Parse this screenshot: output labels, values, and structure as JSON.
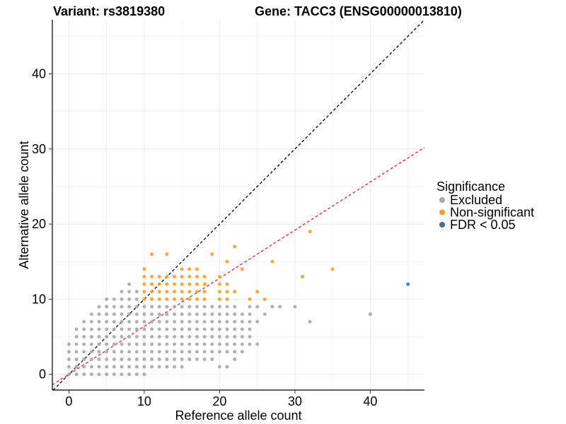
{
  "chart_data": {
    "type": "scatter",
    "title_variant": "Variant: rs3819380",
    "title_gene": "Gene: TACC3 (ENSG00000013810)",
    "xlabel": "Reference allele count",
    "ylabel": "Alternative allele count",
    "xlim": [
      -2.2,
      47.2
    ],
    "ylim": [
      -2.1,
      47.2
    ],
    "x_ticks": [
      0,
      10,
      20,
      30,
      40
    ],
    "y_ticks": [
      0,
      10,
      20,
      30,
      40
    ],
    "grid": true,
    "legend": {
      "title": "Significance",
      "placement": "right",
      "entries": [
        {
          "label": "Excluded",
          "color": "#a9a9a9"
        },
        {
          "label": "Non-significant",
          "color": "#f5a020"
        },
        {
          "label": "FDR < 0.05",
          "color": "#3f6fa0"
        }
      ]
    },
    "reference_lines": [
      {
        "name": "y = x",
        "slope": 1.0,
        "intercept": 0,
        "color": "#000000",
        "dash": "dashed"
      },
      {
        "name": "fit",
        "slope": 0.64,
        "intercept": 0,
        "color": "#e8262a",
        "dash": "dashed"
      }
    ],
    "series": [
      {
        "name": "Excluded",
        "color": "#a9a9a9",
        "points": [
          [
            0,
            0
          ],
          [
            0,
            1
          ],
          [
            0,
            2
          ],
          [
            0,
            3
          ],
          [
            0,
            4
          ],
          [
            1,
            0
          ],
          [
            1,
            1
          ],
          [
            1,
            2
          ],
          [
            1,
            3
          ],
          [
            1,
            4
          ],
          [
            1,
            5
          ],
          [
            1,
            6
          ],
          [
            2,
            0
          ],
          [
            2,
            1
          ],
          [
            2,
            2
          ],
          [
            2,
            3
          ],
          [
            2,
            4
          ],
          [
            2,
            5
          ],
          [
            2,
            6
          ],
          [
            2,
            7
          ],
          [
            3,
            0
          ],
          [
            3,
            1
          ],
          [
            3,
            2
          ],
          [
            3,
            3
          ],
          [
            3,
            4
          ],
          [
            3,
            5
          ],
          [
            3,
            6
          ],
          [
            3,
            7
          ],
          [
            3,
            8
          ],
          [
            4,
            0
          ],
          [
            4,
            1
          ],
          [
            4,
            2
          ],
          [
            4,
            3
          ],
          [
            4,
            4
          ],
          [
            4,
            5
          ],
          [
            4,
            6
          ],
          [
            4,
            7
          ],
          [
            4,
            8
          ],
          [
            4,
            9
          ],
          [
            5,
            0
          ],
          [
            5,
            1
          ],
          [
            5,
            2
          ],
          [
            5,
            3
          ],
          [
            5,
            4
          ],
          [
            5,
            5
          ],
          [
            5,
            6
          ],
          [
            5,
            7
          ],
          [
            5,
            8
          ],
          [
            5,
            9
          ],
          [
            5,
            10
          ],
          [
            6,
            0
          ],
          [
            6,
            1
          ],
          [
            6,
            2
          ],
          [
            6,
            3
          ],
          [
            6,
            4
          ],
          [
            6,
            5
          ],
          [
            6,
            6
          ],
          [
            6,
            7
          ],
          [
            6,
            8
          ],
          [
            6,
            9
          ],
          [
            6,
            10
          ],
          [
            7,
            0
          ],
          [
            7,
            1
          ],
          [
            7,
            2
          ],
          [
            7,
            3
          ],
          [
            7,
            4
          ],
          [
            7,
            5
          ],
          [
            7,
            6
          ],
          [
            7,
            7
          ],
          [
            7,
            8
          ],
          [
            7,
            9
          ],
          [
            7,
            10
          ],
          [
            7,
            11
          ],
          [
            8,
            0
          ],
          [
            8,
            1
          ],
          [
            8,
            2
          ],
          [
            8,
            3
          ],
          [
            8,
            4
          ],
          [
            8,
            5
          ],
          [
            8,
            6
          ],
          [
            8,
            7
          ],
          [
            8,
            8
          ],
          [
            8,
            9
          ],
          [
            8,
            10
          ],
          [
            8,
            11
          ],
          [
            8,
            12
          ],
          [
            9,
            0
          ],
          [
            9,
            1
          ],
          [
            9,
            2
          ],
          [
            9,
            3
          ],
          [
            9,
            4
          ],
          [
            9,
            5
          ],
          [
            9,
            6
          ],
          [
            9,
            7
          ],
          [
            9,
            8
          ],
          [
            9,
            9
          ],
          [
            9,
            10
          ],
          [
            9,
            11
          ],
          [
            10,
            0
          ],
          [
            10,
            1
          ],
          [
            10,
            2
          ],
          [
            10,
            3
          ],
          [
            10,
            4
          ],
          [
            10,
            5
          ],
          [
            10,
            6
          ],
          [
            10,
            7
          ],
          [
            10,
            8
          ],
          [
            10,
            9
          ],
          [
            11,
            1
          ],
          [
            11,
            2
          ],
          [
            11,
            3
          ],
          [
            11,
            4
          ],
          [
            11,
            5
          ],
          [
            11,
            6
          ],
          [
            11,
            7
          ],
          [
            11,
            8
          ],
          [
            11,
            9
          ],
          [
            12,
            1
          ],
          [
            12,
            2
          ],
          [
            12,
            3
          ],
          [
            12,
            4
          ],
          [
            12,
            5
          ],
          [
            12,
            6
          ],
          [
            12,
            7
          ],
          [
            12,
            8
          ],
          [
            12,
            9
          ],
          [
            13,
            1
          ],
          [
            13,
            2
          ],
          [
            13,
            3
          ],
          [
            13,
            4
          ],
          [
            13,
            5
          ],
          [
            13,
            6
          ],
          [
            13,
            7
          ],
          [
            13,
            8
          ],
          [
            13,
            9
          ],
          [
            14,
            1
          ],
          [
            14,
            2
          ],
          [
            14,
            3
          ],
          [
            14,
            4
          ],
          [
            14,
            5
          ],
          [
            14,
            6
          ],
          [
            14,
            7
          ],
          [
            14,
            8
          ],
          [
            14,
            9
          ],
          [
            15,
            1
          ],
          [
            15,
            2
          ],
          [
            15,
            3
          ],
          [
            15,
            4
          ],
          [
            15,
            5
          ],
          [
            15,
            6
          ],
          [
            15,
            7
          ],
          [
            15,
            8
          ],
          [
            15,
            9
          ],
          [
            16,
            2
          ],
          [
            16,
            3
          ],
          [
            16,
            4
          ],
          [
            16,
            5
          ],
          [
            16,
            6
          ],
          [
            16,
            7
          ],
          [
            16,
            8
          ],
          [
            16,
            9
          ],
          [
            17,
            2
          ],
          [
            17,
            3
          ],
          [
            17,
            4
          ],
          [
            17,
            5
          ],
          [
            17,
            6
          ],
          [
            17,
            7
          ],
          [
            17,
            8
          ],
          [
            17,
            9
          ],
          [
            18,
            2
          ],
          [
            18,
            3
          ],
          [
            18,
            4
          ],
          [
            18,
            5
          ],
          [
            18,
            6
          ],
          [
            18,
            7
          ],
          [
            18,
            8
          ],
          [
            18,
            9
          ],
          [
            19,
            2
          ],
          [
            19,
            3
          ],
          [
            19,
            4
          ],
          [
            19,
            5
          ],
          [
            19,
            6
          ],
          [
            19,
            7
          ],
          [
            19,
            8
          ],
          [
            19,
            9
          ],
          [
            20,
            1
          ],
          [
            20,
            3
          ],
          [
            20,
            4
          ],
          [
            20,
            5
          ],
          [
            20,
            6
          ],
          [
            20,
            7
          ],
          [
            20,
            8
          ],
          [
            20,
            9
          ],
          [
            21,
            1
          ],
          [
            21,
            3
          ],
          [
            21,
            4
          ],
          [
            21,
            5
          ],
          [
            21,
            6
          ],
          [
            21,
            7
          ],
          [
            21,
            8
          ],
          [
            21,
            9
          ],
          [
            22,
            2
          ],
          [
            22,
            3
          ],
          [
            22,
            4
          ],
          [
            22,
            5
          ],
          [
            22,
            6
          ],
          [
            22,
            7
          ],
          [
            22,
            8
          ],
          [
            22,
            9
          ],
          [
            23,
            3
          ],
          [
            23,
            4
          ],
          [
            23,
            5
          ],
          [
            23,
            6
          ],
          [
            23,
            7
          ],
          [
            23,
            8
          ],
          [
            24,
            4
          ],
          [
            24,
            5
          ],
          [
            24,
            6
          ],
          [
            24,
            7
          ],
          [
            24,
            8
          ],
          [
            24,
            9
          ],
          [
            25,
            4
          ],
          [
            25,
            7
          ],
          [
            25,
            9
          ],
          [
            26,
            8
          ],
          [
            27,
            9
          ],
          [
            28,
            9
          ],
          [
            30,
            9
          ],
          [
            32,
            7
          ],
          [
            40,
            8
          ]
        ]
      },
      {
        "name": "Non-significant",
        "color": "#f5a020",
        "points": [
          [
            10,
            10
          ],
          [
            10,
            11
          ],
          [
            10,
            12
          ],
          [
            10,
            13
          ],
          [
            10,
            14
          ],
          [
            11,
            10
          ],
          [
            11,
            11
          ],
          [
            11,
            12
          ],
          [
            11,
            13
          ],
          [
            11,
            16
          ],
          [
            12,
            10
          ],
          [
            12,
            11
          ],
          [
            12,
            12
          ],
          [
            12,
            13
          ],
          [
            13,
            10
          ],
          [
            13,
            11
          ],
          [
            13,
            12
          ],
          [
            13,
            13
          ],
          [
            13,
            16
          ],
          [
            14,
            10
          ],
          [
            14,
            11
          ],
          [
            14,
            12
          ],
          [
            14,
            13
          ],
          [
            15,
            10
          ],
          [
            15,
            11
          ],
          [
            15,
            12
          ],
          [
            15,
            13
          ],
          [
            15,
            14
          ],
          [
            16,
            10
          ],
          [
            16,
            11
          ],
          [
            16,
            12
          ],
          [
            16,
            13
          ],
          [
            16,
            14
          ],
          [
            17,
            10
          ],
          [
            17,
            11
          ],
          [
            17,
            12
          ],
          [
            17,
            13
          ],
          [
            17,
            14
          ],
          [
            18,
            10
          ],
          [
            18,
            11
          ],
          [
            18,
            12
          ],
          [
            18,
            13
          ],
          [
            19,
            16
          ],
          [
            20,
            10
          ],
          [
            20,
            11
          ],
          [
            20,
            12
          ],
          [
            20,
            13
          ],
          [
            21,
            10
          ],
          [
            21,
            11
          ],
          [
            21,
            12
          ],
          [
            21,
            15
          ],
          [
            22,
            11
          ],
          [
            22,
            17
          ],
          [
            23,
            14
          ],
          [
            24,
            10
          ],
          [
            25,
            11
          ],
          [
            26,
            10
          ],
          [
            27,
            15
          ],
          [
            31,
            13
          ],
          [
            32,
            19
          ],
          [
            35,
            14
          ]
        ]
      },
      {
        "name": "FDR < 0.05",
        "color": "#3f6fa0",
        "points": [
          [
            45,
            12
          ]
        ]
      }
    ]
  }
}
